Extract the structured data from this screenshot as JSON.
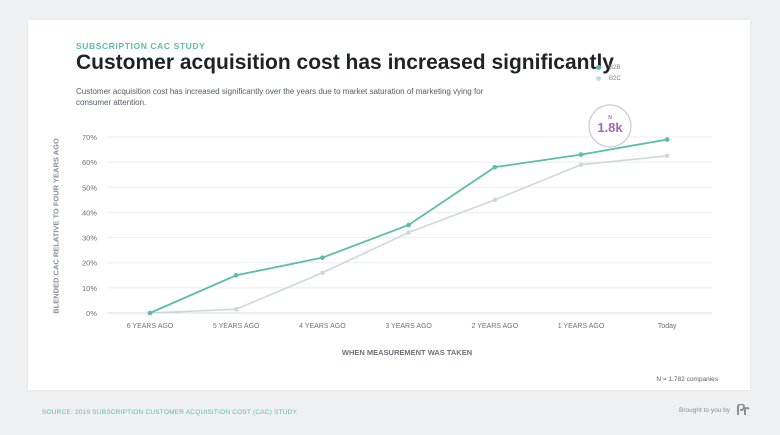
{
  "header": {
    "eyebrow": "SUBSCRIPTION CAC STUDY",
    "title": "Customer acquisition cost has increased significantly",
    "subtitle": "Customer acquisition cost has increased significantly over the years due to market saturation of marketing vying for consumer attention."
  },
  "callout": {
    "label": "N",
    "value": "1.8k",
    "color": "#9b6bb3"
  },
  "footer": {
    "n_note": "N = 1,782 companies",
    "source": "SOURCE: 2019 SUBSCRIPTION CUSTOMER ACQUISITION COST (CAC) STUDY",
    "brought": "Brought to you by"
  },
  "colors": {
    "b2b": "#5bbfa3",
    "b2c": "#cdd9d6",
    "accent": "#5bbfa3"
  },
  "chart_data": {
    "type": "line",
    "title": "Customer acquisition cost has increased significantly",
    "xlabel": "WHEN MEASUREMENT WAS TAKEN",
    "ylabel": "BLENDED CAC RELATIVE TO FOUR YEARS AGO",
    "categories": [
      "6 YEARS AGO",
      "5 YEARS AGO",
      "4 YEARS AGO",
      "3 YEARS AGO",
      "2 YEARS AGO",
      "1 YEARS AGO",
      "Today"
    ],
    "yticks": [
      "0%",
      "10%",
      "20%",
      "30%",
      "40%",
      "50%",
      "60%",
      "70%"
    ],
    "ylim": [
      0,
      70
    ],
    "grid": true,
    "legend_position": "top-right",
    "series": [
      {
        "name": "B2B",
        "color": "#5bbfa3",
        "values": [
          0,
          15,
          22,
          35,
          58,
          63,
          69
        ]
      },
      {
        "name": "B2C",
        "color": "#cdd9d6",
        "values": [
          0,
          1.5,
          16,
          32,
          45,
          59,
          62.5
        ]
      }
    ]
  }
}
